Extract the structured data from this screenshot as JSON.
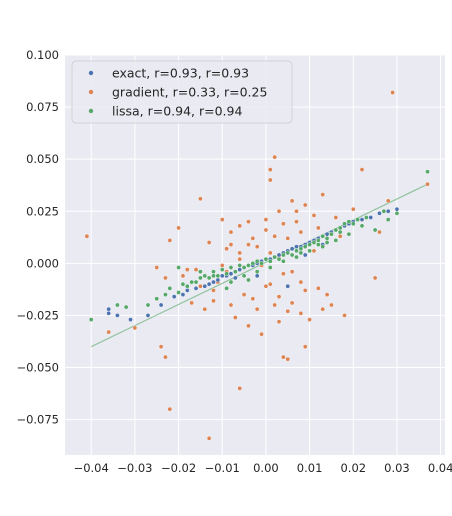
{
  "chart_data": {
    "type": "scatter",
    "title": "",
    "xlabel": "",
    "ylabel": "",
    "xlim": [
      -0.046,
      0.041
    ],
    "ylim": [
      -0.092,
      0.1
    ],
    "xticks": [
      "-0.04",
      "-0.03",
      "-0.02",
      "-0.01",
      "0.00",
      "0.01",
      "0.02",
      "0.03",
      "0.04"
    ],
    "yticks": [
      "-0.075",
      "-0.050",
      "-0.025",
      "0.000",
      "0.025",
      "0.050",
      "0.075",
      "0.100"
    ],
    "xtick_values": [
      -0.04,
      -0.03,
      -0.02,
      -0.01,
      0.0,
      0.01,
      0.02,
      0.03,
      0.04
    ],
    "ytick_values": [
      -0.075,
      -0.05,
      -0.025,
      0.0,
      0.025,
      0.05,
      0.075,
      0.1
    ],
    "grid": true,
    "legend_position": "top-left",
    "colors": {
      "exact": "#4c72b0",
      "gradient": "#dd8452",
      "lissa": "#55a868",
      "background": "#eaeaf2",
      "grid": "#ffffff",
      "fit_line": "#55a868"
    },
    "fit_line": {
      "x": [
        -0.04,
        0.037
      ],
      "y": [
        -0.04,
        0.038
      ]
    },
    "series": [
      {
        "name": "exact, r=0.93, r=0.93",
        "x": [
          -0.036,
          -0.036,
          -0.034,
          -0.031,
          -0.027,
          -0.024,
          -0.021,
          -0.019,
          -0.018,
          -0.016,
          -0.014,
          -0.013,
          -0.012,
          -0.011,
          -0.01,
          -0.009,
          -0.008,
          -0.007,
          -0.006,
          -0.005,
          -0.004,
          -0.003,
          -0.002,
          -0.001,
          0.0,
          0.001,
          0.002,
          0.003,
          0.004,
          0.005,
          0.006,
          0.007,
          0.008,
          0.009,
          0.01,
          0.011,
          0.012,
          0.013,
          0.014,
          0.015,
          0.016,
          0.017,
          0.018,
          0.019,
          0.02,
          0.022,
          0.024,
          0.026,
          0.028,
          0.03,
          0.005,
          -0.002,
          0.009,
          0.013,
          -0.007
        ],
        "y": [
          -0.022,
          -0.024,
          -0.025,
          -0.027,
          -0.025,
          -0.02,
          -0.016,
          -0.015,
          -0.013,
          -0.012,
          -0.011,
          -0.01,
          -0.009,
          -0.008,
          -0.006,
          -0.006,
          -0.005,
          -0.004,
          -0.003,
          -0.002,
          -0.001,
          -0.001,
          0.0,
          0.001,
          0.002,
          0.002,
          0.003,
          0.004,
          0.005,
          0.006,
          0.007,
          0.008,
          0.008,
          0.009,
          0.01,
          0.011,
          0.012,
          0.013,
          0.014,
          0.015,
          0.016,
          0.017,
          0.018,
          0.019,
          0.02,
          0.021,
          0.022,
          0.024,
          0.025,
          0.026,
          -0.011,
          -0.006,
          0.004,
          0.009,
          -0.007
        ]
      },
      {
        "name": "gradient, r=0.33, r=0.25",
        "x": [
          -0.041,
          -0.036,
          -0.03,
          -0.025,
          -0.024,
          -0.023,
          -0.022,
          -0.02,
          -0.019,
          -0.017,
          -0.016,
          -0.015,
          -0.014,
          -0.013,
          -0.012,
          -0.011,
          -0.01,
          -0.009,
          -0.008,
          -0.008,
          -0.007,
          -0.006,
          -0.006,
          -0.005,
          -0.004,
          -0.004,
          -0.003,
          -0.002,
          -0.002,
          -0.001,
          0.0,
          0.0,
          0.001,
          0.001,
          0.002,
          0.002,
          0.003,
          0.003,
          0.004,
          0.004,
          0.005,
          0.005,
          0.006,
          0.006,
          0.007,
          0.008,
          0.008,
          0.009,
          0.01,
          0.011,
          0.012,
          0.013,
          0.014,
          0.015,
          0.016,
          0.018,
          0.02,
          0.022,
          0.025,
          0.028,
          0.029,
          0.026,
          0.037,
          -0.013,
          -0.022,
          -0.023,
          0.002,
          0.001,
          0.004,
          -0.006,
          -0.018,
          0.013,
          -0.01,
          0.005,
          0.009,
          -0.004,
          0.003,
          -0.009,
          0.001,
          0.008,
          0.007,
          0.011,
          -0.003,
          -0.001,
          0.012,
          -0.015,
          0.014,
          0.017,
          -0.006,
          0.0,
          0.006,
          0.003,
          -0.008,
          0.009,
          -0.012
        ],
        "y": [
          0.013,
          -0.033,
          -0.031,
          -0.002,
          -0.04,
          -0.007,
          0.011,
          0.017,
          -0.006,
          -0.019,
          -0.003,
          0.031,
          -0.022,
          0.01,
          -0.018,
          -0.009,
          0.021,
          0.007,
          -0.02,
          0.015,
          -0.026,
          0.005,
          0.018,
          -0.015,
          0.02,
          -0.03,
          0.012,
          -0.022,
          0.008,
          -0.034,
          0.016,
          -0.011,
          0.04,
          -0.01,
          0.013,
          -0.02,
          0.025,
          -0.016,
          -0.005,
          0.019,
          0.012,
          -0.023,
          -0.004,
          0.03,
          0.02,
          -0.009,
          0.015,
          -0.013,
          -0.027,
          0.006,
          -0.012,
          0.033,
          -0.015,
          -0.02,
          0.022,
          -0.025,
          0.026,
          0.045,
          -0.007,
          0.03,
          0.082,
          0.015,
          0.038,
          -0.084,
          -0.07,
          -0.045,
          0.051,
          0.045,
          -0.045,
          -0.06,
          -0.003,
          -0.022,
          -0.001,
          -0.046,
          -0.04,
          0.009,
          0.003,
          -0.004,
          0.005,
          -0.024,
          0.025,
          0.023,
          -0.017,
          -0.001,
          0.017,
          -0.011,
          0.01,
          0.013,
          0.002,
          0.021,
          -0.019,
          -0.028,
          0.009,
          0.028,
          -0.013
        ]
      },
      {
        "name": "lissa, r=0.94, r=0.94",
        "x": [
          -0.04,
          -0.034,
          -0.032,
          -0.027,
          -0.025,
          -0.023,
          -0.022,
          -0.02,
          -0.019,
          -0.018,
          -0.017,
          -0.016,
          -0.015,
          -0.014,
          -0.013,
          -0.012,
          -0.011,
          -0.01,
          -0.009,
          -0.008,
          -0.007,
          -0.006,
          -0.005,
          -0.004,
          -0.003,
          -0.002,
          -0.001,
          0.0,
          0.001,
          0.002,
          0.003,
          0.004,
          0.005,
          0.006,
          0.007,
          0.008,
          0.009,
          0.01,
          0.011,
          0.012,
          0.013,
          0.014,
          0.015,
          0.016,
          0.017,
          0.018,
          0.019,
          0.02,
          0.021,
          0.023,
          0.025,
          0.027,
          0.03,
          0.037,
          -0.02,
          -0.015,
          -0.012,
          -0.008,
          -0.005,
          -0.002,
          0.001,
          0.004,
          0.007,
          0.01,
          0.013,
          0.016,
          0.019,
          0.022,
          0.028,
          0.012,
          -0.009,
          -0.004,
          0.003,
          0.008,
          0.014,
          0.017
        ],
        "y": [
          -0.027,
          -0.02,
          -0.021,
          -0.02,
          -0.017,
          -0.015,
          -0.012,
          -0.014,
          -0.01,
          -0.011,
          -0.009,
          -0.009,
          -0.007,
          -0.006,
          -0.007,
          -0.004,
          -0.006,
          -0.003,
          -0.005,
          -0.002,
          -0.004,
          -0.001,
          -0.002,
          -0.001,
          0.0,
          0.001,
          0.0,
          0.002,
          0.001,
          0.003,
          0.002,
          0.004,
          0.005,
          0.004,
          0.006,
          0.007,
          0.008,
          0.009,
          0.01,
          0.011,
          0.013,
          0.012,
          0.014,
          0.016,
          0.017,
          0.019,
          0.02,
          0.019,
          0.021,
          0.022,
          0.016,
          0.025,
          0.024,
          0.044,
          -0.002,
          -0.004,
          -0.006,
          -0.009,
          -0.006,
          -0.004,
          -0.002,
          0.001,
          0.003,
          0.006,
          0.008,
          0.011,
          0.014,
          0.018,
          0.021,
          0.009,
          -0.012,
          -0.008,
          0.002,
          0.005,
          0.01,
          0.015
        ]
      }
    ]
  }
}
